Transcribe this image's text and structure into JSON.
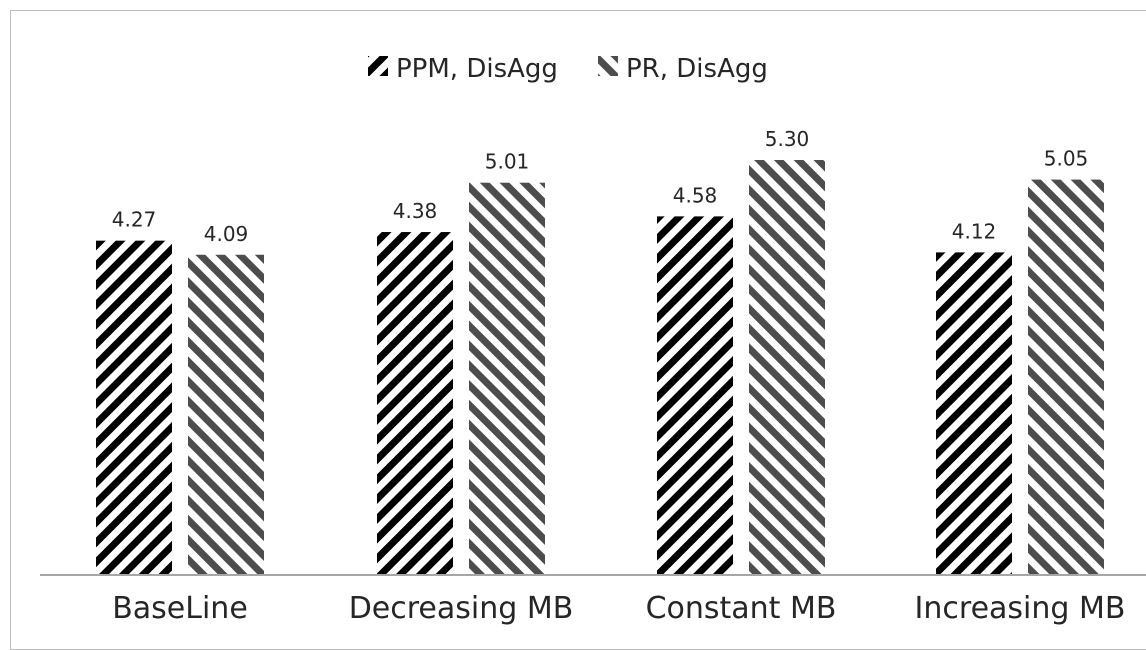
{
  "chart_data": {
    "type": "bar",
    "categories": [
      "BaseLine",
      "Decreasing MB",
      "Constant MB",
      "Increasing MB"
    ],
    "series": [
      {
        "name": "PPM, DisAgg",
        "values": [
          4.27,
          4.38,
          4.58,
          4.12
        ],
        "labels": [
          "4.27",
          "4.38",
          "4.58",
          "4.12"
        ],
        "pattern": "forward-diagonal",
        "color": "#000000"
      },
      {
        "name": "PR, DisAgg",
        "values": [
          4.09,
          5.01,
          5.3,
          5.05
        ],
        "labels": [
          "4.09",
          "5.01",
          "5.30",
          "5.05"
        ],
        "pattern": "backward-diagonal",
        "color": "#4d4d4d"
      }
    ],
    "title": "",
    "xlabel": "",
    "ylabel": "",
    "ylim": [
      0,
      5.7
    ],
    "grid": false,
    "legend": "top-center",
    "data_labels": true
  }
}
